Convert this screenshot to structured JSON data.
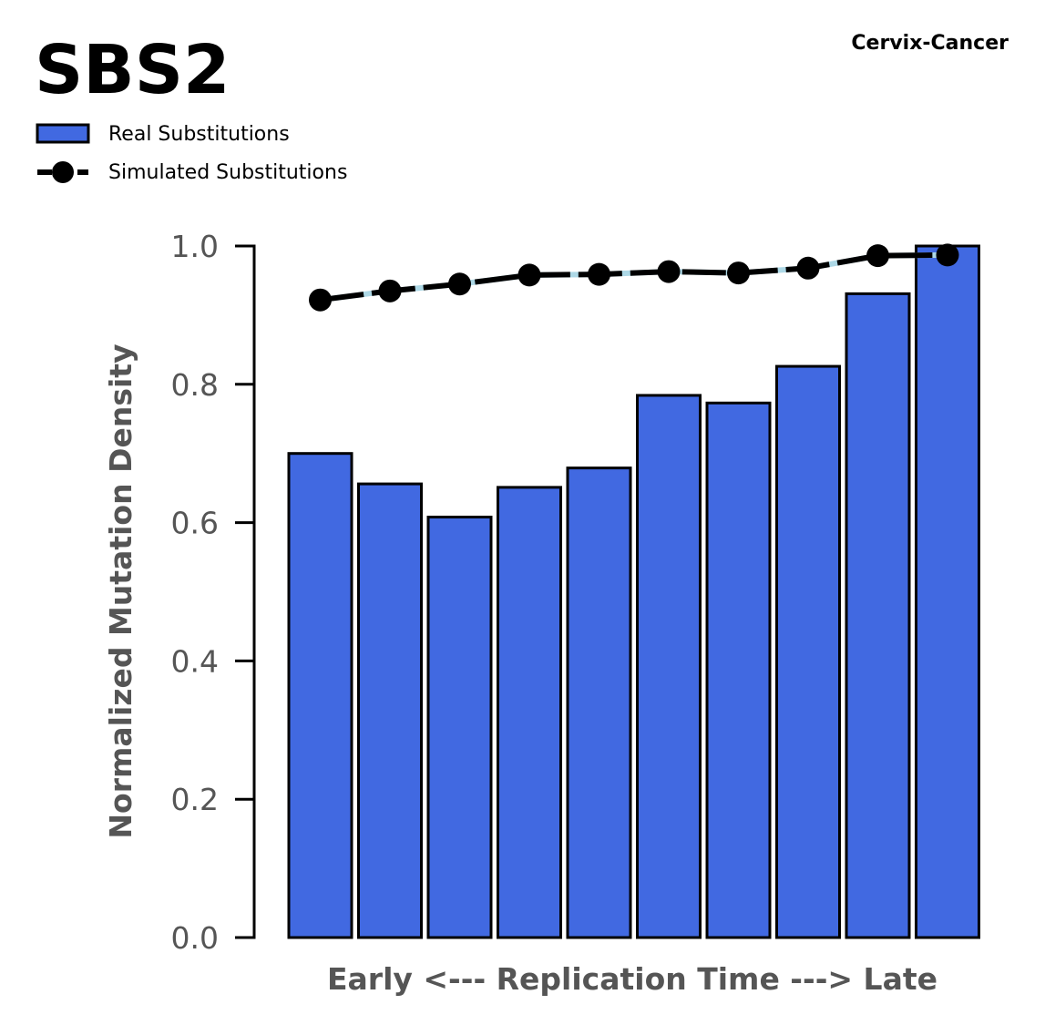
{
  "chart_data": {
    "type": "bar",
    "title": "SBS2",
    "subtitle": "Cervix-Cancer",
    "xlabel": "Early <--- Replication Time ---> Late",
    "ylabel": "Normalized Mutation Density",
    "ylim": [
      0,
      1.0
    ],
    "yticks": [
      "0.0",
      "0.2",
      "0.4",
      "0.6",
      "0.8",
      "1.0"
    ],
    "x": [
      1,
      2,
      3,
      4,
      5,
      6,
      7,
      8,
      9,
      10
    ],
    "grid": false,
    "legend_position": "top-left",
    "series": [
      {
        "name": "Real Substitutions",
        "kind": "bar",
        "color": "#4169E1",
        "values": [
          0.7,
          0.656,
          0.608,
          0.651,
          0.679,
          0.784,
          0.773,
          0.826,
          0.931,
          1.0
        ]
      },
      {
        "name": "Simulated Substitutions",
        "kind": "line",
        "color": "#000000",
        "under_color": "#ADD8E6",
        "values": [
          0.922,
          0.935,
          0.945,
          0.958,
          0.959,
          0.963,
          0.961,
          0.968,
          0.986,
          0.987
        ]
      }
    ]
  }
}
